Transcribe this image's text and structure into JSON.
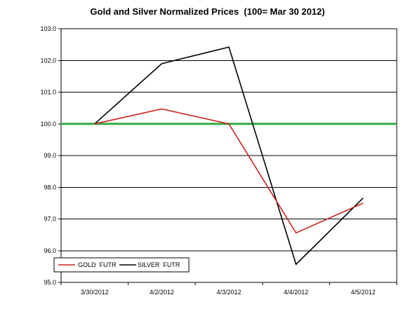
{
  "chart_data": {
    "type": "line",
    "title": "Gold and Silver Normalized Prices  (100= Mar 30 2012)",
    "xlabel": "",
    "ylabel": "",
    "categories": [
      "3/30/2012",
      "4/2/2012",
      "4/3/2012",
      "4/4/2012",
      "4/5/2012"
    ],
    "ylim": [
      95,
      103
    ],
    "yticks": [
      "95.0",
      "96.0",
      "97.0",
      "98.0",
      "99.0",
      "100.0",
      "101.0",
      "102.0",
      "103.0"
    ],
    "grid": true,
    "legend": "bottom-left",
    "series": [
      {
        "name": "GOLD  FUTR",
        "color": "#cc2222",
        "values": [
          100.0,
          100.47,
          100.0,
          96.56,
          97.5
        ]
      },
      {
        "name": "SILVER  FUTR",
        "color": "#000000",
        "values": [
          100.0,
          101.9,
          102.42,
          95.57,
          97.66
        ]
      }
    ],
    "reference_line": {
      "value": 100.0,
      "color": "#33aa44"
    }
  }
}
